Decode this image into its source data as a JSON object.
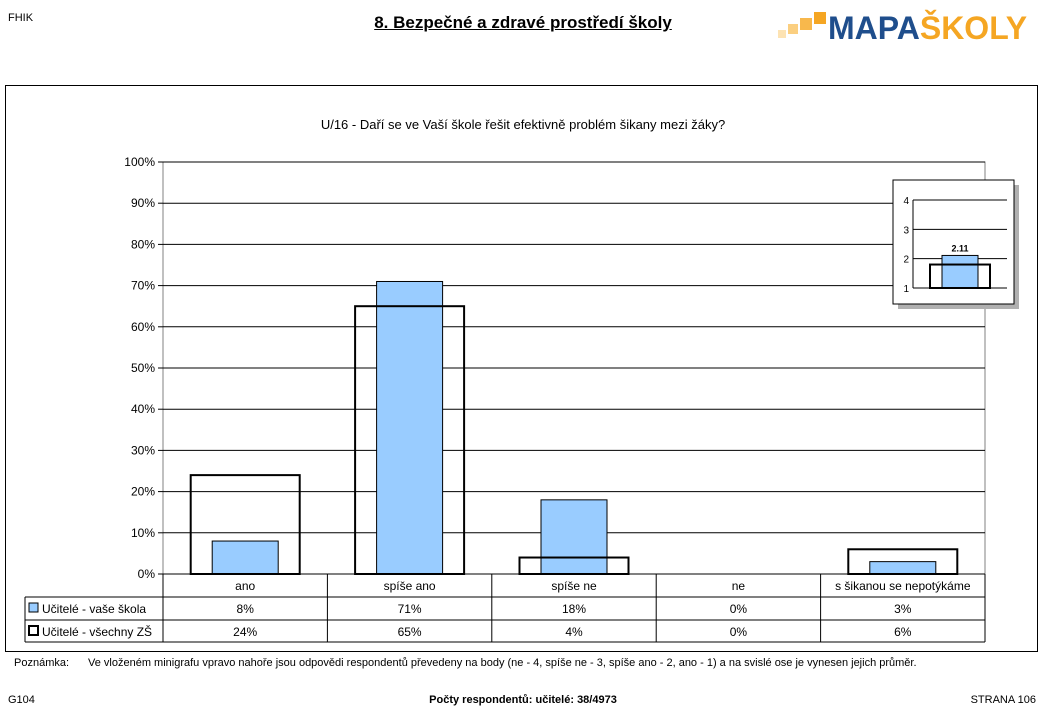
{
  "header": {
    "school_code": "FHIK",
    "title": "8. Bezpečné a zdravé prostředí školy",
    "logo": {
      "part1": "MAPA",
      "part2": "ŠKOLY"
    }
  },
  "colors": {
    "school_bar": "#99ccff",
    "all_bar": "none",
    "logo_blue": "#1f4e8c",
    "logo_orange": "#f5a623"
  },
  "chart_data": [
    {
      "type": "bar",
      "title": "U/16 - Daří se ve Vaší škole řešit efektivně problém šikany mezi žáky?",
      "categories": [
        "ano",
        "spíše ano",
        "spíše ne",
        "ne",
        "s šikanou se nepotýkáme"
      ],
      "series": [
        {
          "name": "Učitelé - vaše škola",
          "values": [
            8,
            71,
            18,
            0,
            3
          ],
          "labels": [
            "8%",
            "71%",
            "18%",
            "0%",
            "3%"
          ]
        },
        {
          "name": "Učitelé - všechny ZŠ",
          "values": [
            24,
            65,
            4,
            0,
            6
          ],
          "labels": [
            "24%",
            "65%",
            "4%",
            "0%",
            "6%"
          ]
        }
      ],
      "yticks": [
        "0%",
        "10%",
        "20%",
        "30%",
        "40%",
        "50%",
        "60%",
        "70%",
        "80%",
        "90%",
        "100%"
      ],
      "ylim": [
        0,
        100
      ],
      "grid": true,
      "legend": "data-table"
    },
    {
      "type": "bar",
      "title": "",
      "series": [
        {
          "name": "Učitelé - všechny ZŠ",
          "values": [
            1.8
          ]
        },
        {
          "name": "Učitelé - vaše škola",
          "values": [
            2.11
          ]
        }
      ],
      "data_label": "2.11",
      "yticks": [
        "1",
        "2",
        "3",
        "4"
      ],
      "ylim": [
        1,
        4
      ],
      "grid": true,
      "legend": "none"
    }
  ],
  "note": {
    "label": "Poznámka:",
    "text": "Ve vloženém minigrafu vpravo nahoře jsou odpovědi respondentů převedeny na body (ne - 4, spíše ne - 3, spíše ano - 2, ano - 1) a na svislé ose je vynesen jejich průměr."
  },
  "footer": {
    "left": "G104",
    "center": "Počty respondentů:   učitelé: 38/4973",
    "right": "STRANA 106"
  }
}
